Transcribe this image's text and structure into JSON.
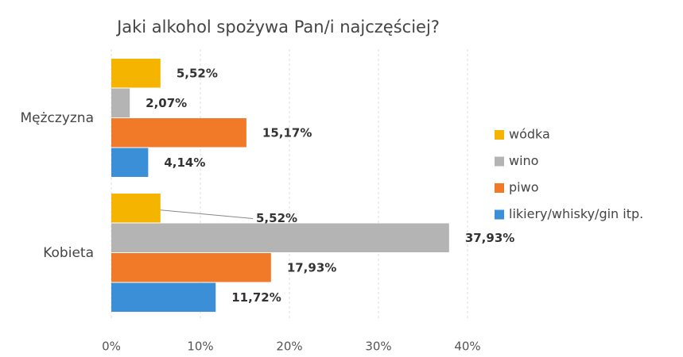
{
  "chart_data": {
    "type": "bar",
    "orientation": "horizontal",
    "title": "Jaki alkohol spożywa Pan/i najczęściej?",
    "categories": [
      "Mężczyzna",
      "Kobieta"
    ],
    "series": [
      {
        "name": "wódka",
        "color": "#f5b400",
        "values": [
          5.52,
          5.52
        ],
        "value_labels": [
          "5,52%",
          "5,52%"
        ]
      },
      {
        "name": "wino",
        "color": "#b4b4b4",
        "values": [
          2.07,
          37.93
        ],
        "value_labels": [
          "2,07%",
          "37,93%"
        ]
      },
      {
        "name": "piwo",
        "color": "#f07a28",
        "values": [
          15.17,
          17.93
        ],
        "value_labels": [
          "15,17%",
          "17,93%"
        ]
      },
      {
        "name": "likiery/whisky/gin itp.",
        "color": "#3a8fd6",
        "values": [
          4.14,
          11.72
        ],
        "value_labels": [
          "4,14%",
          "11,72%"
        ]
      }
    ],
    "xlim": [
      0,
      40
    ],
    "xticks": [
      {
        "value": 0,
        "label": "0%"
      },
      {
        "value": 10,
        "label": "10%"
      },
      {
        "value": 20,
        "label": "20%"
      },
      {
        "value": 30,
        "label": "30%"
      },
      {
        "value": 40,
        "label": "40%"
      }
    ],
    "grid": true,
    "legend": "right"
  }
}
